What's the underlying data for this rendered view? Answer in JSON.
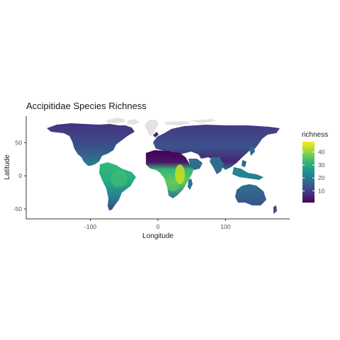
{
  "chart_data": {
    "type": "heatmap",
    "title": "Accipitidae Species Richness",
    "xlabel": "Longitude",
    "ylabel": "Latitude",
    "x_ticks": [
      -100,
      0,
      100
    ],
    "y_ticks": [
      -50,
      0,
      50
    ],
    "xlim": [
      -195,
      195
    ],
    "ylim": [
      -65,
      90
    ],
    "legend": {
      "title": "richness",
      "ticks": [
        10,
        20,
        30,
        40
      ],
      "range": [
        1,
        48
      ],
      "palette": [
        "#440154",
        "#482777",
        "#3e4989",
        "#31688e",
        "#26828e",
        "#1f9e89",
        "#35b779",
        "#6ece58",
        "#b5de2b",
        "#fde725"
      ],
      "placement": "right"
    },
    "grid": false,
    "no_data_color": "#e3e3e3",
    "regions": [
      {
        "lon": [
          -165,
          -125
        ],
        "lat": [
          55,
          72
        ],
        "value": 3
      },
      {
        "lon": [
          -135,
          -60
        ],
        "lat": [
          50,
          80
        ],
        "value": 4
      },
      {
        "lon": [
          -125,
          -95
        ],
        "lat": [
          30,
          50
        ],
        "value": 9
      },
      {
        "lon": [
          -95,
          -70
        ],
        "lat": [
          30,
          48
        ],
        "value": 10
      },
      {
        "lon": [
          -115,
          -95
        ],
        "lat": [
          17,
          30
        ],
        "value": 14
      },
      {
        "lon": [
          -100,
          -80
        ],
        "lat": [
          8,
          18
        ],
        "value": 24
      },
      {
        "lon": [
          -80,
          -50
        ],
        "lat": [
          -5,
          10
        ],
        "value": 32
      },
      {
        "lon": [
          -75,
          -35
        ],
        "lat": [
          -15,
          -5
        ],
        "value": 30
      },
      {
        "lon": [
          -65,
          -45
        ],
        "lat": [
          -30,
          -15
        ],
        "value": 24
      },
      {
        "lon": [
          -72,
          -60
        ],
        "lat": [
          -55,
          -30
        ],
        "value": 12
      },
      {
        "lon": [
          -55,
          -20
        ],
        "lat": [
          60,
          83
        ],
        "value": 1
      },
      {
        "lon": [
          -15,
          30
        ],
        "lat": [
          36,
          70
        ],
        "value": 9
      },
      {
        "lon": [
          30,
          170
        ],
        "lat": [
          55,
          75
        ],
        "value": 5
      },
      {
        "lon": [
          30,
          130
        ],
        "lat": [
          35,
          55
        ],
        "value": 10
      },
      {
        "lon": [
          -17,
          35
        ],
        "lat": [
          15,
          35
        ],
        "value": 3
      },
      {
        "lon": [
          35,
          60
        ],
        "lat": [
          12,
          35
        ],
        "value": 5
      },
      {
        "lon": [
          -17,
          15
        ],
        "lat": [
          5,
          15
        ],
        "value": 24
      },
      {
        "lon": [
          10,
          30
        ],
        "lat": [
          -10,
          5
        ],
        "value": 24
      },
      {
        "lon": [
          30,
          42
        ],
        "lat": [
          -15,
          12
        ],
        "value": 45
      },
      {
        "lon": [
          12,
          35
        ],
        "lat": [
          -35,
          -10
        ],
        "value": 28
      },
      {
        "lon": [
          65,
          90
        ],
        "lat": [
          8,
          30
        ],
        "value": 22
      },
      {
        "lon": [
          90,
          120
        ],
        "lat": [
          15,
          35
        ],
        "value": 26
      },
      {
        "lon": [
          95,
          150
        ],
        "lat": [
          -10,
          8
        ],
        "value": 22
      },
      {
        "lon": [
          113,
          155
        ],
        "lat": [
          -40,
          -12
        ],
        "value": 12
      }
    ]
  }
}
